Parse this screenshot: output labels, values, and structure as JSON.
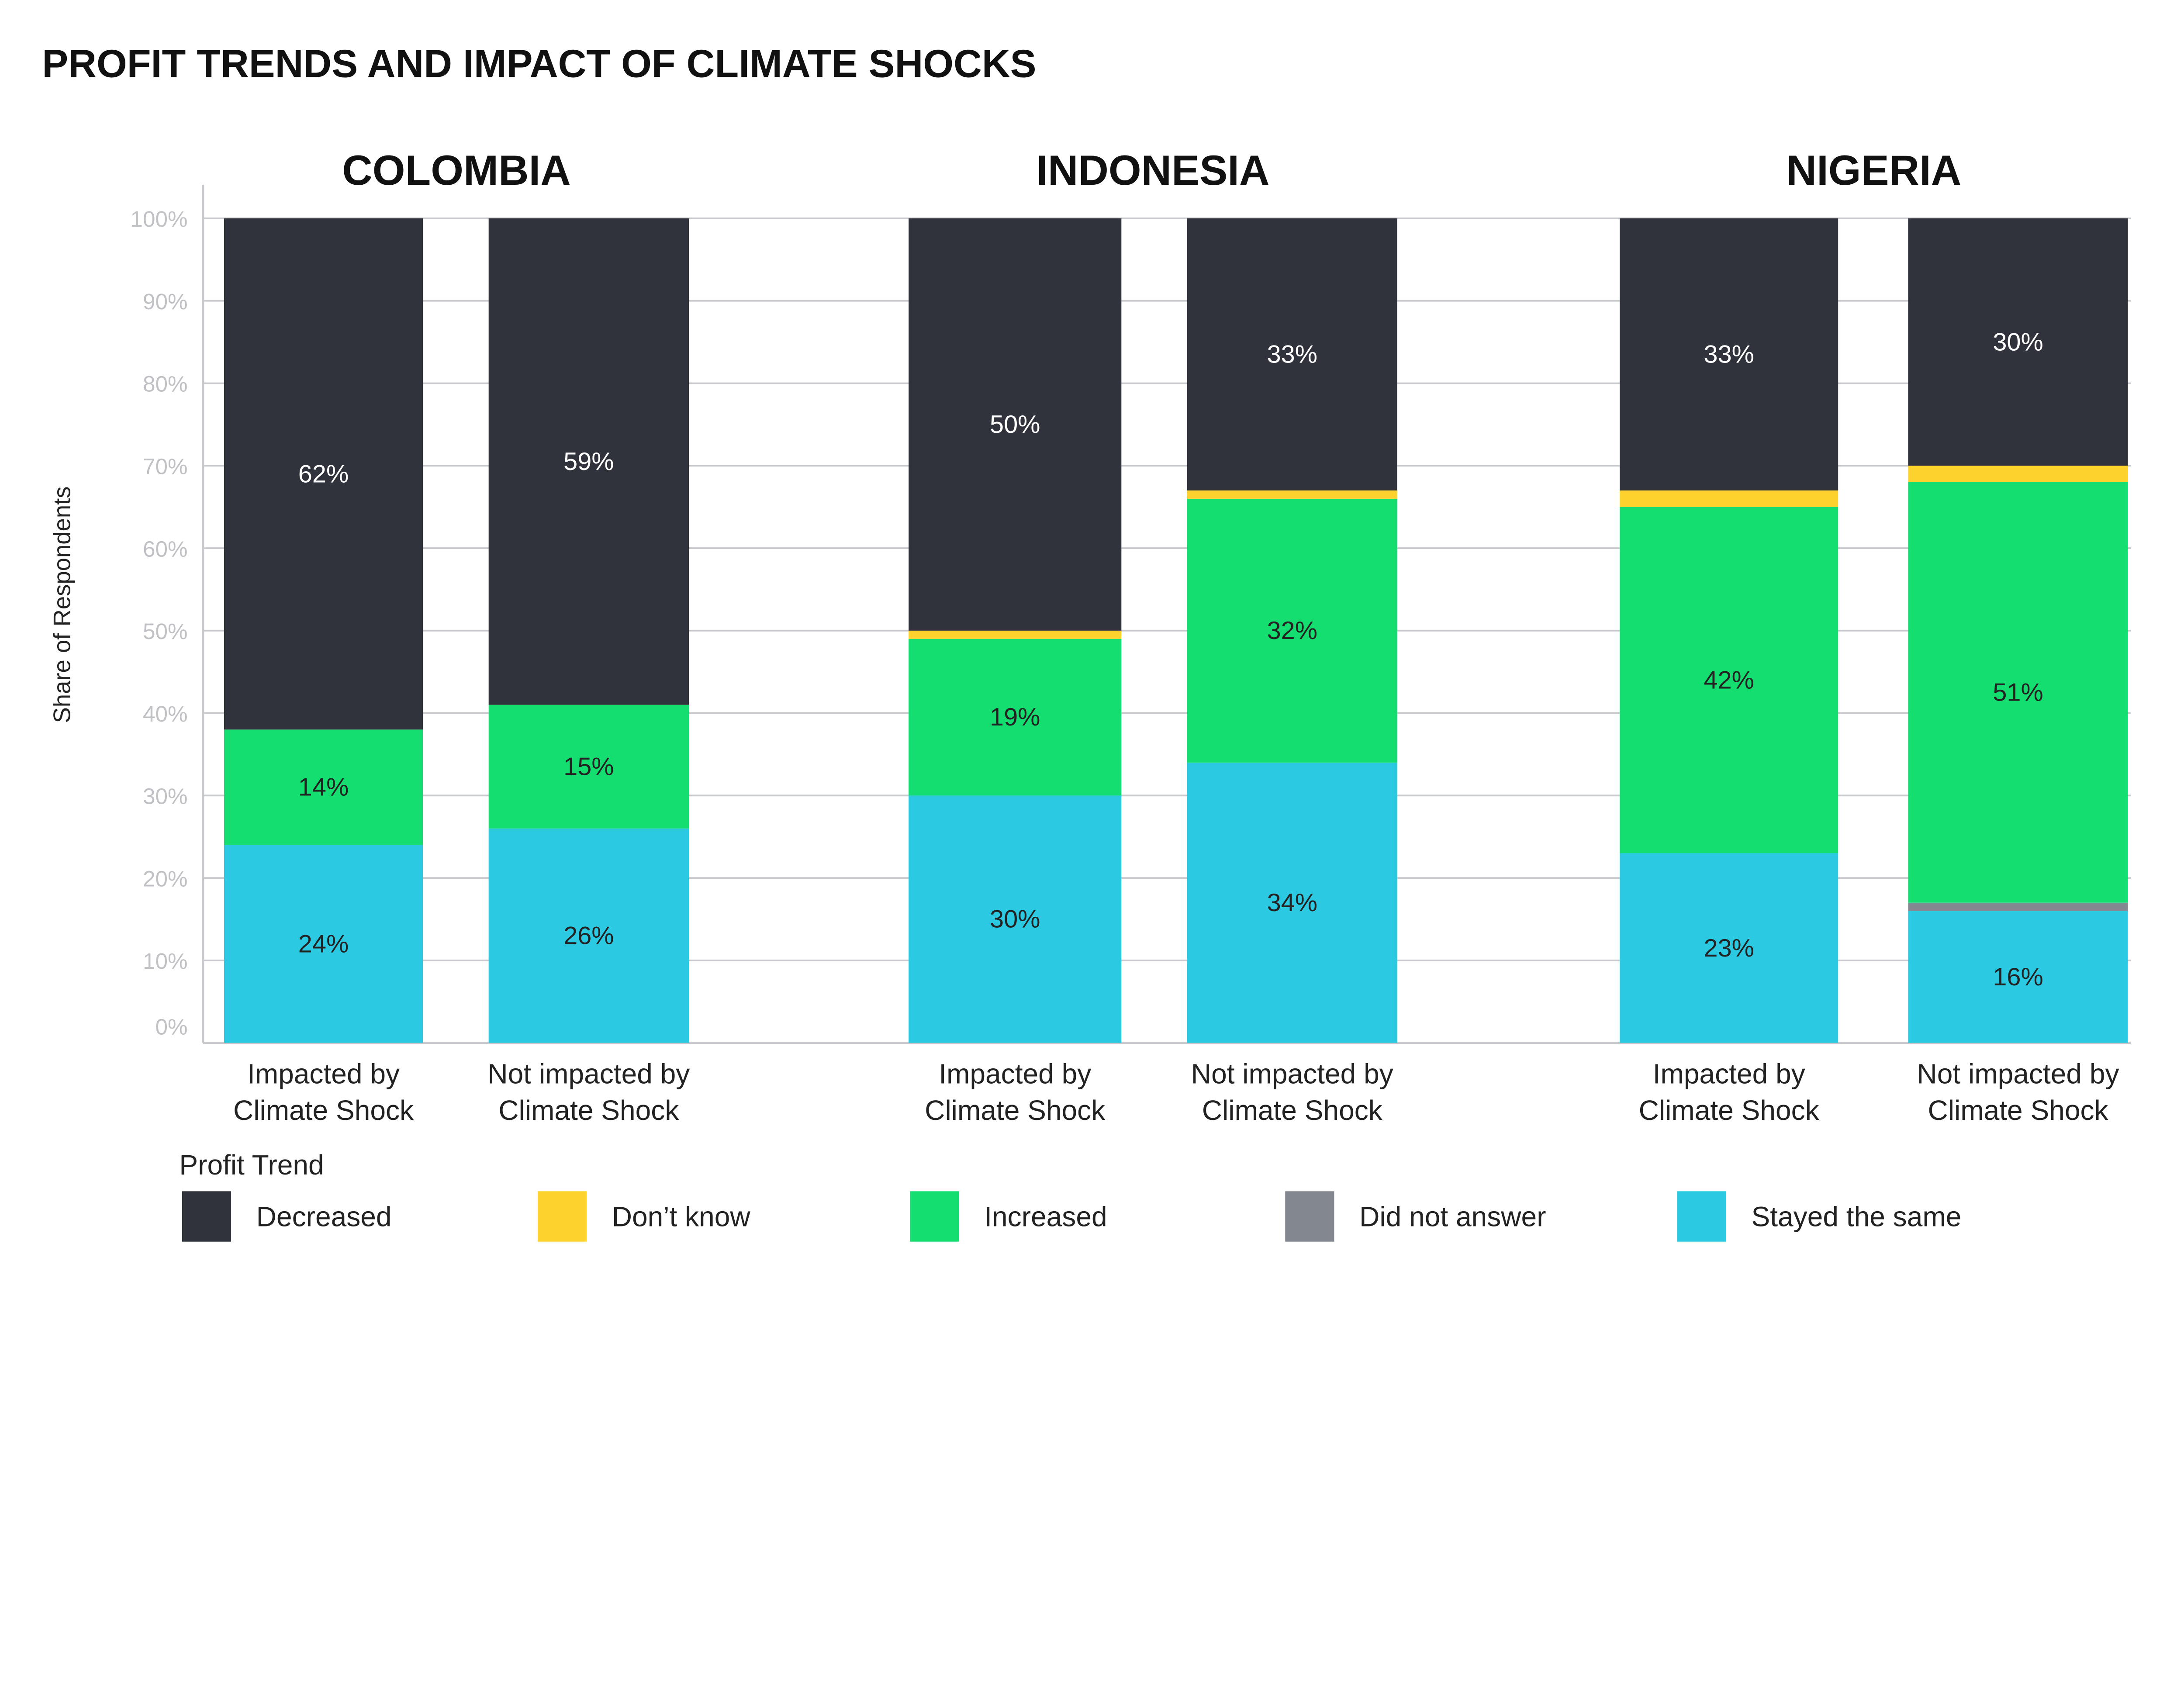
{
  "chart_data": {
    "type": "bar",
    "stacked": true,
    "title": "PROFIT TRENDS AND IMPACT OF CLIMATE SHOCKS",
    "ylabel": "Share of Respondents",
    "ylim": [
      0,
      100
    ],
    "yticks": [
      "0%",
      "10%",
      "20%",
      "30%",
      "40%",
      "50%",
      "60%",
      "70%",
      "80%",
      "90%",
      "100%"
    ],
    "grid": true,
    "legend_title": "Profit Trend",
    "legend_position": "bottom",
    "series_order_bottom_to_top": [
      "Stayed the same",
      "Did not answer",
      "Increased",
      "Don't know",
      "Decreased"
    ],
    "legend": [
      {
        "name": "Decreased",
        "color": "#30333b"
      },
      {
        "name": "Don’t know",
        "color": "#fdd22d"
      },
      {
        "name": "Increased",
        "color": "#14de70"
      },
      {
        "name": "Did not answer",
        "color": "#83878f"
      },
      {
        "name": "Stayed the same",
        "color": "#2ccae2"
      }
    ],
    "groups": [
      {
        "country": "COLOMBIA",
        "bars": [
          {
            "label": [
              "Impacted by",
              "Climate Shock"
            ],
            "values": {
              "Stayed the same": 24,
              "Did not answer": 0,
              "Increased": 14,
              "Don't know": 0,
              "Decreased": 62
            }
          },
          {
            "label": [
              "Not impacted by",
              "Climate Shock"
            ],
            "values": {
              "Stayed the same": 26,
              "Did not answer": 0,
              "Increased": 15,
              "Don't know": 0,
              "Decreased": 59
            }
          }
        ]
      },
      {
        "country": "INDONESIA",
        "bars": [
          {
            "label": [
              "Impacted by",
              "Climate Shock"
            ],
            "values": {
              "Stayed the same": 30,
              "Did not answer": 0,
              "Increased": 19,
              "Don't know": 1,
              "Decreased": 50
            }
          },
          {
            "label": [
              "Not impacted by",
              "Climate Shock"
            ],
            "values": {
              "Stayed the same": 34,
              "Did not answer": 0,
              "Increased": 32,
              "Don't know": 1,
              "Decreased": 33
            }
          }
        ]
      },
      {
        "country": "NIGERIA",
        "bars": [
          {
            "label": [
              "Impacted by",
              "Climate Shock"
            ],
            "values": {
              "Stayed the same": 23,
              "Did not answer": 0,
              "Increased": 42,
              "Don't know": 2,
              "Decreased": 33
            }
          },
          {
            "label": [
              "Not impacted by",
              "Climate Shock"
            ],
            "values": {
              "Stayed the same": 16,
              "Did not answer": 1,
              "Increased": 51,
              "Don't know": 2,
              "Decreased": 30
            }
          }
        ]
      }
    ],
    "labeled_series": [
      "Stayed the same",
      "Increased",
      "Decreased"
    ]
  }
}
